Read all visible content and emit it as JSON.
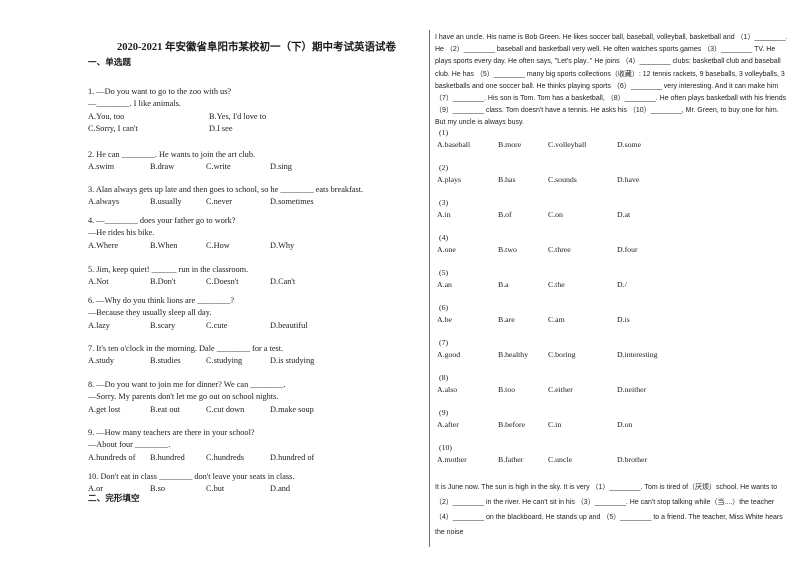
{
  "title": "2020-2021 年安徽省阜阳市某校初一（下）期中考试英语试卷",
  "sections": {
    "choice": {
      "header": "一、单选题"
    },
    "cloze": {
      "header": "二、完形填空"
    }
  },
  "colors": {
    "text": "#1b1b1b",
    "divider": "#6e6e6e",
    "background": "#ffffff"
  },
  "questions": [
    {
      "lines": [
        "1. —Do you want to go to the zoo with us?",
        "—________. I like animals."
      ],
      "layout": "grid2",
      "options": [
        "A.You, too",
        "B.Yes, I'd love to",
        "C.Sorry, I can't",
        "D.I see"
      ]
    },
    {
      "lines": [
        "2. He can ________. He wants to join the art club."
      ],
      "options": [
        "A.swim",
        "B.draw",
        "C.write",
        "D.sing"
      ]
    },
    {
      "lines": [
        "3. Alan always gets up late and then goes to school, so he ________ eats breakfast."
      ],
      "options": [
        "A.always",
        "B.usually",
        "C.never",
        "D.sometimes"
      ]
    },
    {
      "lines": [
        "4. —________ does your father go to work?",
        "—He rides his bike."
      ],
      "options": [
        "A.Where",
        "B.When",
        "C.How",
        "D.Why"
      ]
    },
    {
      "lines": [
        "5. Jim, keep quiet! ______ run in the classroom."
      ],
      "options": [
        "A.Not",
        "B.Don't",
        "C.Doesn't",
        "D.Can't"
      ]
    },
    {
      "lines": [
        "6. —Why do you think lions are ________?",
        "—Because they usually sleep all day."
      ],
      "options": [
        "A.lazy",
        "B.scary",
        "C.cute",
        "D.beautiful"
      ]
    },
    {
      "lines": [
        "7. It's ten o'clock in the morning. Dale ________ for a test."
      ],
      "options": [
        "A.study",
        "B.studies",
        "C.studying",
        "D.is studying"
      ]
    },
    {
      "lines": [
        "8. —Do you want to join me for dinner? We can ________.",
        "—Sorry. My parents don't let me go out on school nights."
      ],
      "options": [
        "A.get lost",
        "B.eat out",
        "C.cut down",
        "D.make soup"
      ]
    },
    {
      "lines": [
        "9. —How many teachers are there in your school?",
        "—About four ________."
      ],
      "options": [
        "A.hundreds of",
        "B.hundred",
        "C.hundreds",
        "D.hundred of"
      ]
    },
    {
      "lines": [
        "10. Don't eat in class ________ don't leave your seats in class."
      ],
      "options": [
        "A.or",
        "B.so",
        "C.but",
        "D.and"
      ]
    }
  ],
  "cloze": {
    "passage1": "I have an uncle. His name is Bob Green. He likes soccer ball, baseball, volleyball, basketball and （1）________. He （2）________ baseball and basketball very well. He often watches sports games （3）________ TV. He plays sports every day. He often says, \"Let's play..\" He joins （4）________ clubs: basketball club and baseball club. He has （5）________ many big sports collections（收藏）: 12 tennis rackets, 9 baseballs, 3 volleyballs, 3 basketballs and one soccer ball. He thinks playing sports （6）________ very interesting. And it can make him （7）________. His son is Tom. Tom has a basketball, （8）________. He often plays basketball with his friends （9）________ class. Tom doesn't have a tennis. He asks his （10）________, Mr. Green, to buy one for him. But my uncle is always busy.",
    "items": [
      {
        "num": "(1)",
        "options": [
          "A.baseball",
          "B.more",
          "C.volleyball",
          "D.some"
        ]
      },
      {
        "num": "(2)",
        "options": [
          "A.plays",
          "B.has",
          "C.sounds",
          "D.have"
        ]
      },
      {
        "num": "(3)",
        "options": [
          "A.in",
          "B.of",
          "C.on",
          "D.at"
        ]
      },
      {
        "num": "(4)",
        "options": [
          "A.one",
          "B.two",
          "C.three",
          "D.four"
        ]
      },
      {
        "num": "(5)",
        "options": [
          "A.an",
          "B.a",
          "C.the",
          "D./"
        ]
      },
      {
        "num": "(6)",
        "options": [
          "A.be",
          "B.are",
          "C.am",
          "D.is"
        ]
      },
      {
        "num": "(7)",
        "options": [
          "A.good",
          "B.healthy",
          "C.boring",
          "D.interesting"
        ]
      },
      {
        "num": "(8)",
        "options": [
          "A.also",
          "B.too",
          "C.either",
          "D.neither"
        ]
      },
      {
        "num": "(9)",
        "options": [
          "A.after",
          "B.before",
          "C.in",
          "D.on"
        ]
      },
      {
        "num": "(10)",
        "options": [
          "A.mother",
          "B.father",
          "C.uncle",
          "D.brother"
        ]
      }
    ],
    "passage2": "It is June now. The sun is high in the sky. It is very （1）________. Tom is tired of（厌烦）school. He wants to （2）________ in the river. He can't sit in his （3）________. He can't stop talking while（当....）the teacher （4）________ on the blackboard. He stands up and （5）________ to a friend. The teacher, Miss White hears the noise"
  }
}
